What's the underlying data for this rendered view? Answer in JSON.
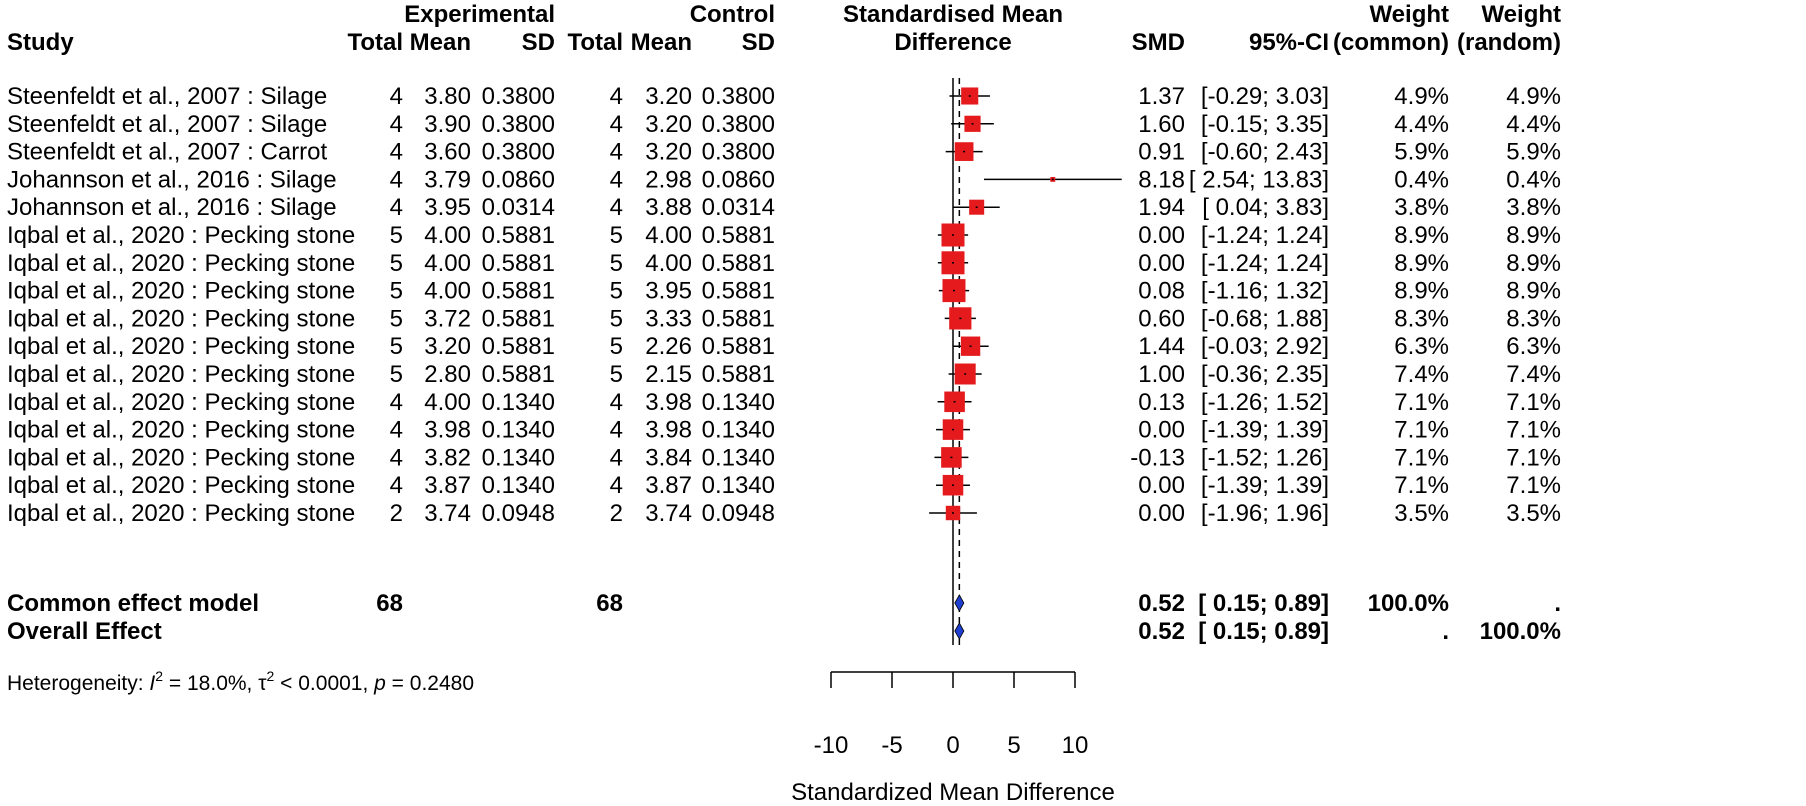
{
  "chart_data": {
    "type": "forest",
    "columns": {
      "study": "Study",
      "experimental_group": "Experimental",
      "control_group": "Control",
      "total": "Total",
      "mean": "Mean",
      "sd": "SD",
      "effect_header_line1": "Standardised Mean",
      "effect_header_line2": "Difference",
      "smd": "SMD",
      "ci": "95%-CI",
      "weight_common_line1": "Weight",
      "weight_common_line2": "(common)",
      "weight_random_line1": "Weight",
      "weight_random_line2": "(random)"
    },
    "studies": [
      {
        "study": "Steenfeldt et al., 2007 : Silage",
        "e_total": "4",
        "e_mean": "3.80",
        "e_sd": "0.3800",
        "c_total": "4",
        "c_mean": "3.20",
        "c_sd": "0.3800",
        "smd": 1.37,
        "lower": -0.29,
        "upper": 3.03,
        "smd_text": "1.37",
        "ci_text": "[-0.29; 3.03]",
        "w_common": "4.9%",
        "w_random": "4.9%",
        "weight": 4.9
      },
      {
        "study": "Steenfeldt et al., 2007 : Silage",
        "e_total": "4",
        "e_mean": "3.90",
        "e_sd": "0.3800",
        "c_total": "4",
        "c_mean": "3.20",
        "c_sd": "0.3800",
        "smd": 1.6,
        "lower": -0.15,
        "upper": 3.35,
        "smd_text": "1.60",
        "ci_text": "[-0.15; 3.35]",
        "w_common": "4.4%",
        "w_random": "4.4%",
        "weight": 4.4
      },
      {
        "study": "Steenfeldt et al., 2007 : Carrot",
        "e_total": "4",
        "e_mean": "3.60",
        "e_sd": "0.3800",
        "c_total": "4",
        "c_mean": "3.20",
        "c_sd": "0.3800",
        "smd": 0.91,
        "lower": -0.6,
        "upper": 2.43,
        "smd_text": "0.91",
        "ci_text": "[-0.60; 2.43]",
        "w_common": "5.9%",
        "w_random": "5.9%",
        "weight": 5.9
      },
      {
        "study": "Johannson et al., 2016 : Silage",
        "e_total": "4",
        "e_mean": "3.79",
        "e_sd": "0.0860",
        "c_total": "4",
        "c_mean": "2.98",
        "c_sd": "0.0860",
        "smd": 8.18,
        "lower": 2.54,
        "upper": 13.83,
        "smd_text": "8.18",
        "ci_text": "[ 2.54; 13.83]",
        "w_common": "0.4%",
        "w_random": "0.4%",
        "weight": 0.4
      },
      {
        "study": "Johannson et al., 2016 : Silage",
        "e_total": "4",
        "e_mean": "3.95",
        "e_sd": "0.0314",
        "c_total": "4",
        "c_mean": "3.88",
        "c_sd": "0.0314",
        "smd": 1.94,
        "lower": 0.04,
        "upper": 3.83,
        "smd_text": "1.94",
        "ci_text": "[ 0.04; 3.83]",
        "w_common": "3.8%",
        "w_random": "3.8%",
        "weight": 3.8
      },
      {
        "study": "Iqbal et al., 2020 : Pecking stone",
        "e_total": "5",
        "e_mean": "4.00",
        "e_sd": "0.5881",
        "c_total": "5",
        "c_mean": "4.00",
        "c_sd": "0.5881",
        "smd": 0.0,
        "lower": -1.24,
        "upper": 1.24,
        "smd_text": "0.00",
        "ci_text": "[-1.24; 1.24]",
        "w_common": "8.9%",
        "w_random": "8.9%",
        "weight": 8.9
      },
      {
        "study": "Iqbal et al., 2020 : Pecking stone",
        "e_total": "5",
        "e_mean": "4.00",
        "e_sd": "0.5881",
        "c_total": "5",
        "c_mean": "4.00",
        "c_sd": "0.5881",
        "smd": 0.0,
        "lower": -1.24,
        "upper": 1.24,
        "smd_text": "0.00",
        "ci_text": "[-1.24; 1.24]",
        "w_common": "8.9%",
        "w_random": "8.9%",
        "weight": 8.9
      },
      {
        "study": "Iqbal et al., 2020 : Pecking stone",
        "e_total": "5",
        "e_mean": "4.00",
        "e_sd": "0.5881",
        "c_total": "5",
        "c_mean": "3.95",
        "c_sd": "0.5881",
        "smd": 0.08,
        "lower": -1.16,
        "upper": 1.32,
        "smd_text": "0.08",
        "ci_text": "[-1.16; 1.32]",
        "w_common": "8.9%",
        "w_random": "8.9%",
        "weight": 8.9
      },
      {
        "study": "Iqbal et al., 2020 : Pecking stone",
        "e_total": "5",
        "e_mean": "3.72",
        "e_sd": "0.5881",
        "c_total": "5",
        "c_mean": "3.33",
        "c_sd": "0.5881",
        "smd": 0.6,
        "lower": -0.68,
        "upper": 1.88,
        "smd_text": "0.60",
        "ci_text": "[-0.68; 1.88]",
        "w_common": "8.3%",
        "w_random": "8.3%",
        "weight": 8.3
      },
      {
        "study": "Iqbal et al., 2020 : Pecking stone",
        "e_total": "5",
        "e_mean": "3.20",
        "e_sd": "0.5881",
        "c_total": "5",
        "c_mean": "2.26",
        "c_sd": "0.5881",
        "smd": 1.44,
        "lower": -0.03,
        "upper": 2.92,
        "smd_text": "1.44",
        "ci_text": "[-0.03; 2.92]",
        "w_common": "6.3%",
        "w_random": "6.3%",
        "weight": 6.3
      },
      {
        "study": "Iqbal et al., 2020 : Pecking stone",
        "e_total": "5",
        "e_mean": "2.80",
        "e_sd": "0.5881",
        "c_total": "5",
        "c_mean": "2.15",
        "c_sd": "0.5881",
        "smd": 1.0,
        "lower": -0.36,
        "upper": 2.35,
        "smd_text": "1.00",
        "ci_text": "[-0.36; 2.35]",
        "w_common": "7.4%",
        "w_random": "7.4%",
        "weight": 7.4
      },
      {
        "study": "Iqbal et al., 2020 : Pecking stone",
        "e_total": "4",
        "e_mean": "4.00",
        "e_sd": "0.1340",
        "c_total": "4",
        "c_mean": "3.98",
        "c_sd": "0.1340",
        "smd": 0.13,
        "lower": -1.26,
        "upper": 1.52,
        "smd_text": "0.13",
        "ci_text": "[-1.26; 1.52]",
        "w_common": "7.1%",
        "w_random": "7.1%",
        "weight": 7.1
      },
      {
        "study": "Iqbal et al., 2020 : Pecking stone",
        "e_total": "4",
        "e_mean": "3.98",
        "e_sd": "0.1340",
        "c_total": "4",
        "c_mean": "3.98",
        "c_sd": "0.1340",
        "smd": 0.0,
        "lower": -1.39,
        "upper": 1.39,
        "smd_text": "0.00",
        "ci_text": "[-1.39; 1.39]",
        "w_common": "7.1%",
        "w_random": "7.1%",
        "weight": 7.1
      },
      {
        "study": "Iqbal et al., 2020 : Pecking stone",
        "e_total": "4",
        "e_mean": "3.82",
        "e_sd": "0.1340",
        "c_total": "4",
        "c_mean": "3.84",
        "c_sd": "0.1340",
        "smd": -0.13,
        "lower": -1.52,
        "upper": 1.26,
        "smd_text": "-0.13",
        "ci_text": "[-1.52; 1.26]",
        "w_common": "7.1%",
        "w_random": "7.1%",
        "weight": 7.1
      },
      {
        "study": "Iqbal et al., 2020 : Pecking stone",
        "e_total": "4",
        "e_mean": "3.87",
        "e_sd": "0.1340",
        "c_total": "4",
        "c_mean": "3.87",
        "c_sd": "0.1340",
        "smd": 0.0,
        "lower": -1.39,
        "upper": 1.39,
        "smd_text": "0.00",
        "ci_text": "[-1.39; 1.39]",
        "w_common": "7.1%",
        "w_random": "7.1%",
        "weight": 7.1
      },
      {
        "study": "Iqbal et al., 2020 : Pecking stone",
        "e_total": "2",
        "e_mean": "3.74",
        "e_sd": "0.0948",
        "c_total": "2",
        "c_mean": "3.74",
        "c_sd": "0.0948",
        "smd": 0.0,
        "lower": -1.96,
        "upper": 1.96,
        "smd_text": "0.00",
        "ci_text": "[-1.96; 1.96]",
        "w_common": "3.5%",
        "w_random": "3.5%",
        "weight": 3.5
      }
    ],
    "pooled": [
      {
        "label": "Common effect model",
        "e_total": "68",
        "c_total": "68",
        "smd": 0.52,
        "lower": 0.15,
        "upper": 0.89,
        "smd_text": "0.52",
        "ci_text": "[ 0.15; 0.89]",
        "w_common": "100.0%",
        "w_random": "."
      },
      {
        "label": "Overall Effect",
        "e_total": "",
        "c_total": "",
        "smd": 0.52,
        "lower": 0.15,
        "upper": 0.89,
        "smd_text": "0.52",
        "ci_text": "[ 0.15; 0.89]",
        "w_common": ".",
        "w_random": "100.0%"
      }
    ],
    "heterogeneity": {
      "prefix": "Heterogeneity: ",
      "i2_symbol": "I",
      "i2_value": " = 18.0%, ",
      "tau2_symbol": "τ",
      "tau2_value": " < 0.0001, ",
      "p_symbol": "p",
      "p_value": " = 0.2480",
      "superscript": "2"
    },
    "x_axis": {
      "label": "Standardized Mean Difference",
      "range": [
        -10,
        10
      ],
      "ticks": [
        -10,
        -5,
        0,
        5,
        10
      ]
    },
    "reference_line": 0,
    "pooled_line": 0.52,
    "colors": {
      "square": "#e41a1c",
      "diamond": "#1f3fd1",
      "line": "#000000"
    }
  }
}
